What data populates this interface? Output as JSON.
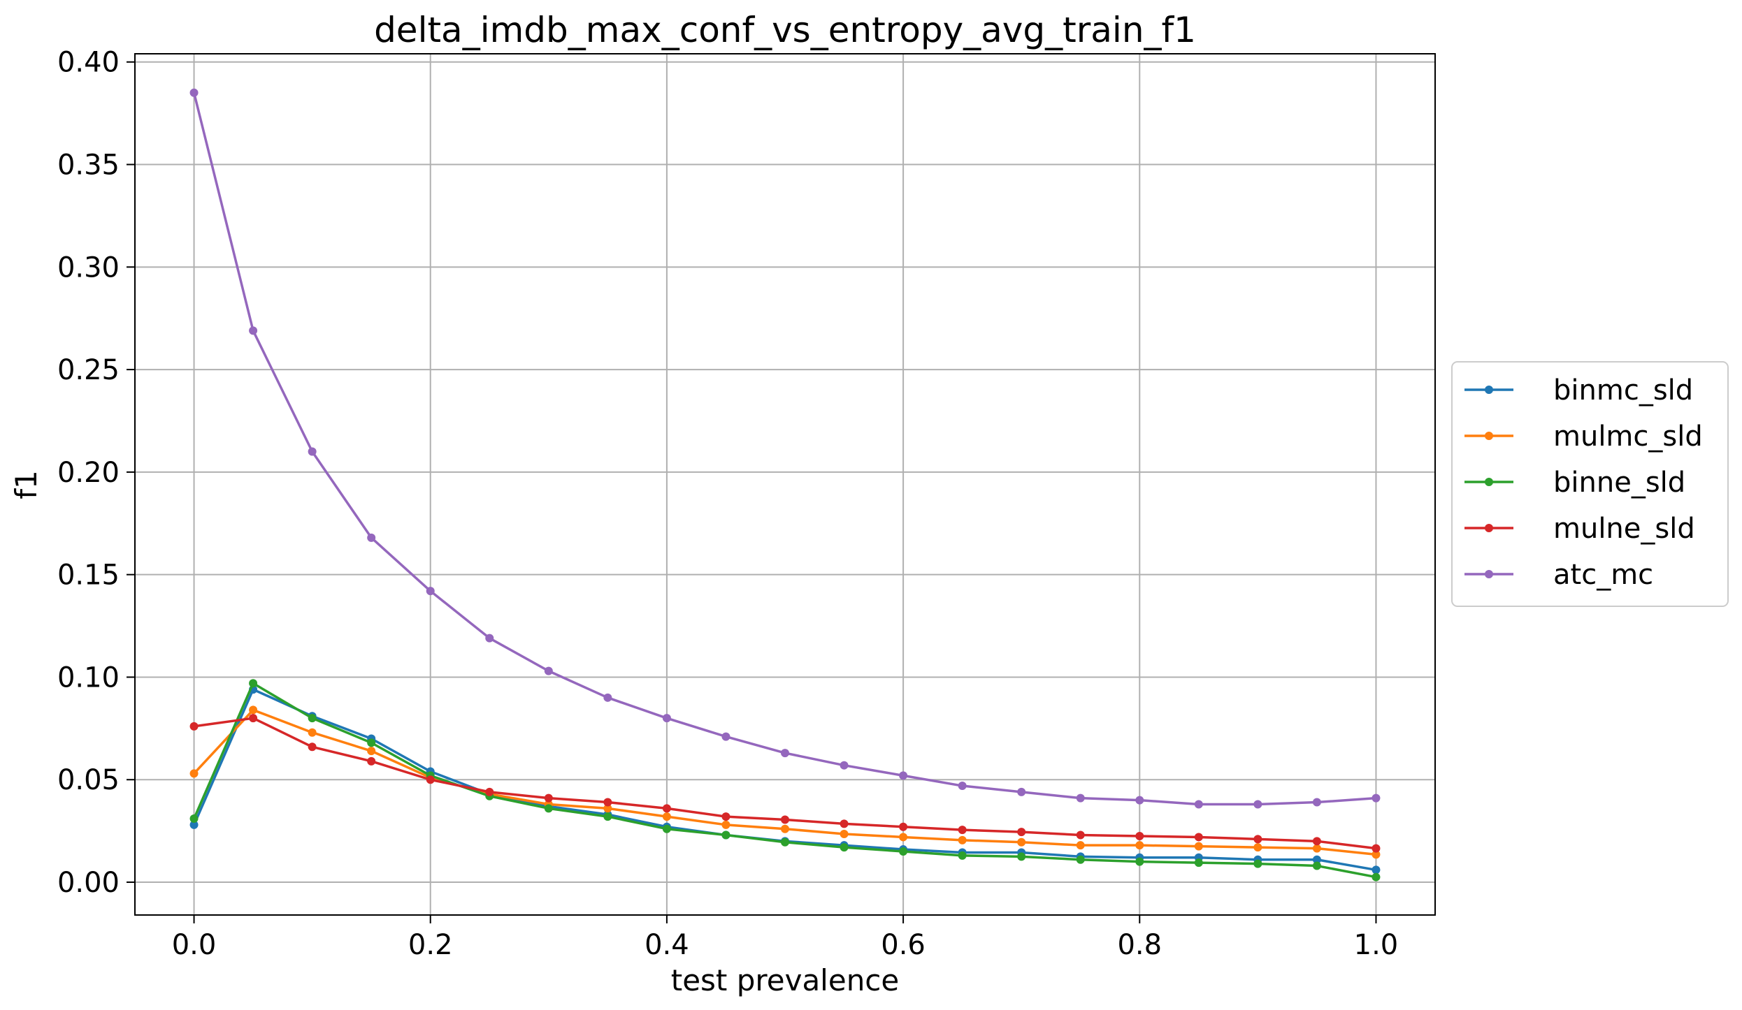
{
  "chart_data": {
    "type": "line",
    "title": "delta_imdb_max_conf_vs_entropy_avg_train_f1",
    "xlabel": "test prevalence",
    "ylabel": "f1",
    "xlim": [
      -0.05,
      1.05
    ],
    "ylim": [
      -0.016,
      0.404
    ],
    "x_ticks": [
      "0.0",
      "0.2",
      "0.4",
      "0.6",
      "0.8",
      "1.0"
    ],
    "y_ticks": [
      "0.00",
      "0.05",
      "0.10",
      "0.15",
      "0.20",
      "0.25",
      "0.30",
      "0.35",
      "0.40"
    ],
    "grid": true,
    "legend_position": "center-right, outside plot",
    "x": [
      0.0,
      0.05,
      0.1,
      0.15,
      0.2,
      0.25,
      0.3,
      0.35,
      0.4,
      0.45,
      0.5,
      0.55,
      0.6,
      0.65,
      0.7,
      0.75,
      0.8,
      0.85,
      0.9,
      0.95,
      1.0
    ],
    "series": [
      {
        "name": "binmc_sld",
        "color": "#1f77b4",
        "values": [
          0.028,
          0.094,
          0.081,
          0.07,
          0.054,
          0.043,
          0.037,
          0.033,
          0.027,
          0.023,
          0.02,
          0.018,
          0.016,
          0.0145,
          0.0145,
          0.0125,
          0.012,
          0.012,
          0.011,
          0.011,
          0.006
        ]
      },
      {
        "name": "mulmc_sld",
        "color": "#ff7f0e",
        "values": [
          0.053,
          0.084,
          0.073,
          0.064,
          0.051,
          0.043,
          0.038,
          0.036,
          0.032,
          0.028,
          0.026,
          0.0235,
          0.022,
          0.0205,
          0.0195,
          0.018,
          0.018,
          0.0175,
          0.017,
          0.0165,
          0.0135
        ]
      },
      {
        "name": "binne_sld",
        "color": "#2ca02c",
        "values": [
          0.031,
          0.097,
          0.08,
          0.068,
          0.052,
          0.042,
          0.036,
          0.032,
          0.026,
          0.023,
          0.0195,
          0.017,
          0.015,
          0.013,
          0.0125,
          0.011,
          0.01,
          0.0095,
          0.009,
          0.008,
          0.0025
        ]
      },
      {
        "name": "mulne_sld",
        "color": "#d62728",
        "values": [
          0.076,
          0.08,
          0.066,
          0.059,
          0.05,
          0.044,
          0.041,
          0.039,
          0.036,
          0.032,
          0.0305,
          0.0285,
          0.027,
          0.0255,
          0.0245,
          0.023,
          0.0225,
          0.022,
          0.021,
          0.02,
          0.0165
        ]
      },
      {
        "name": "atc_mc",
        "color": "#9467bd",
        "values": [
          0.385,
          0.269,
          0.21,
          0.168,
          0.142,
          0.119,
          0.103,
          0.09,
          0.08,
          0.071,
          0.063,
          0.057,
          0.052,
          0.047,
          0.044,
          0.041,
          0.04,
          0.038,
          0.038,
          0.039,
          0.041
        ]
      }
    ]
  }
}
